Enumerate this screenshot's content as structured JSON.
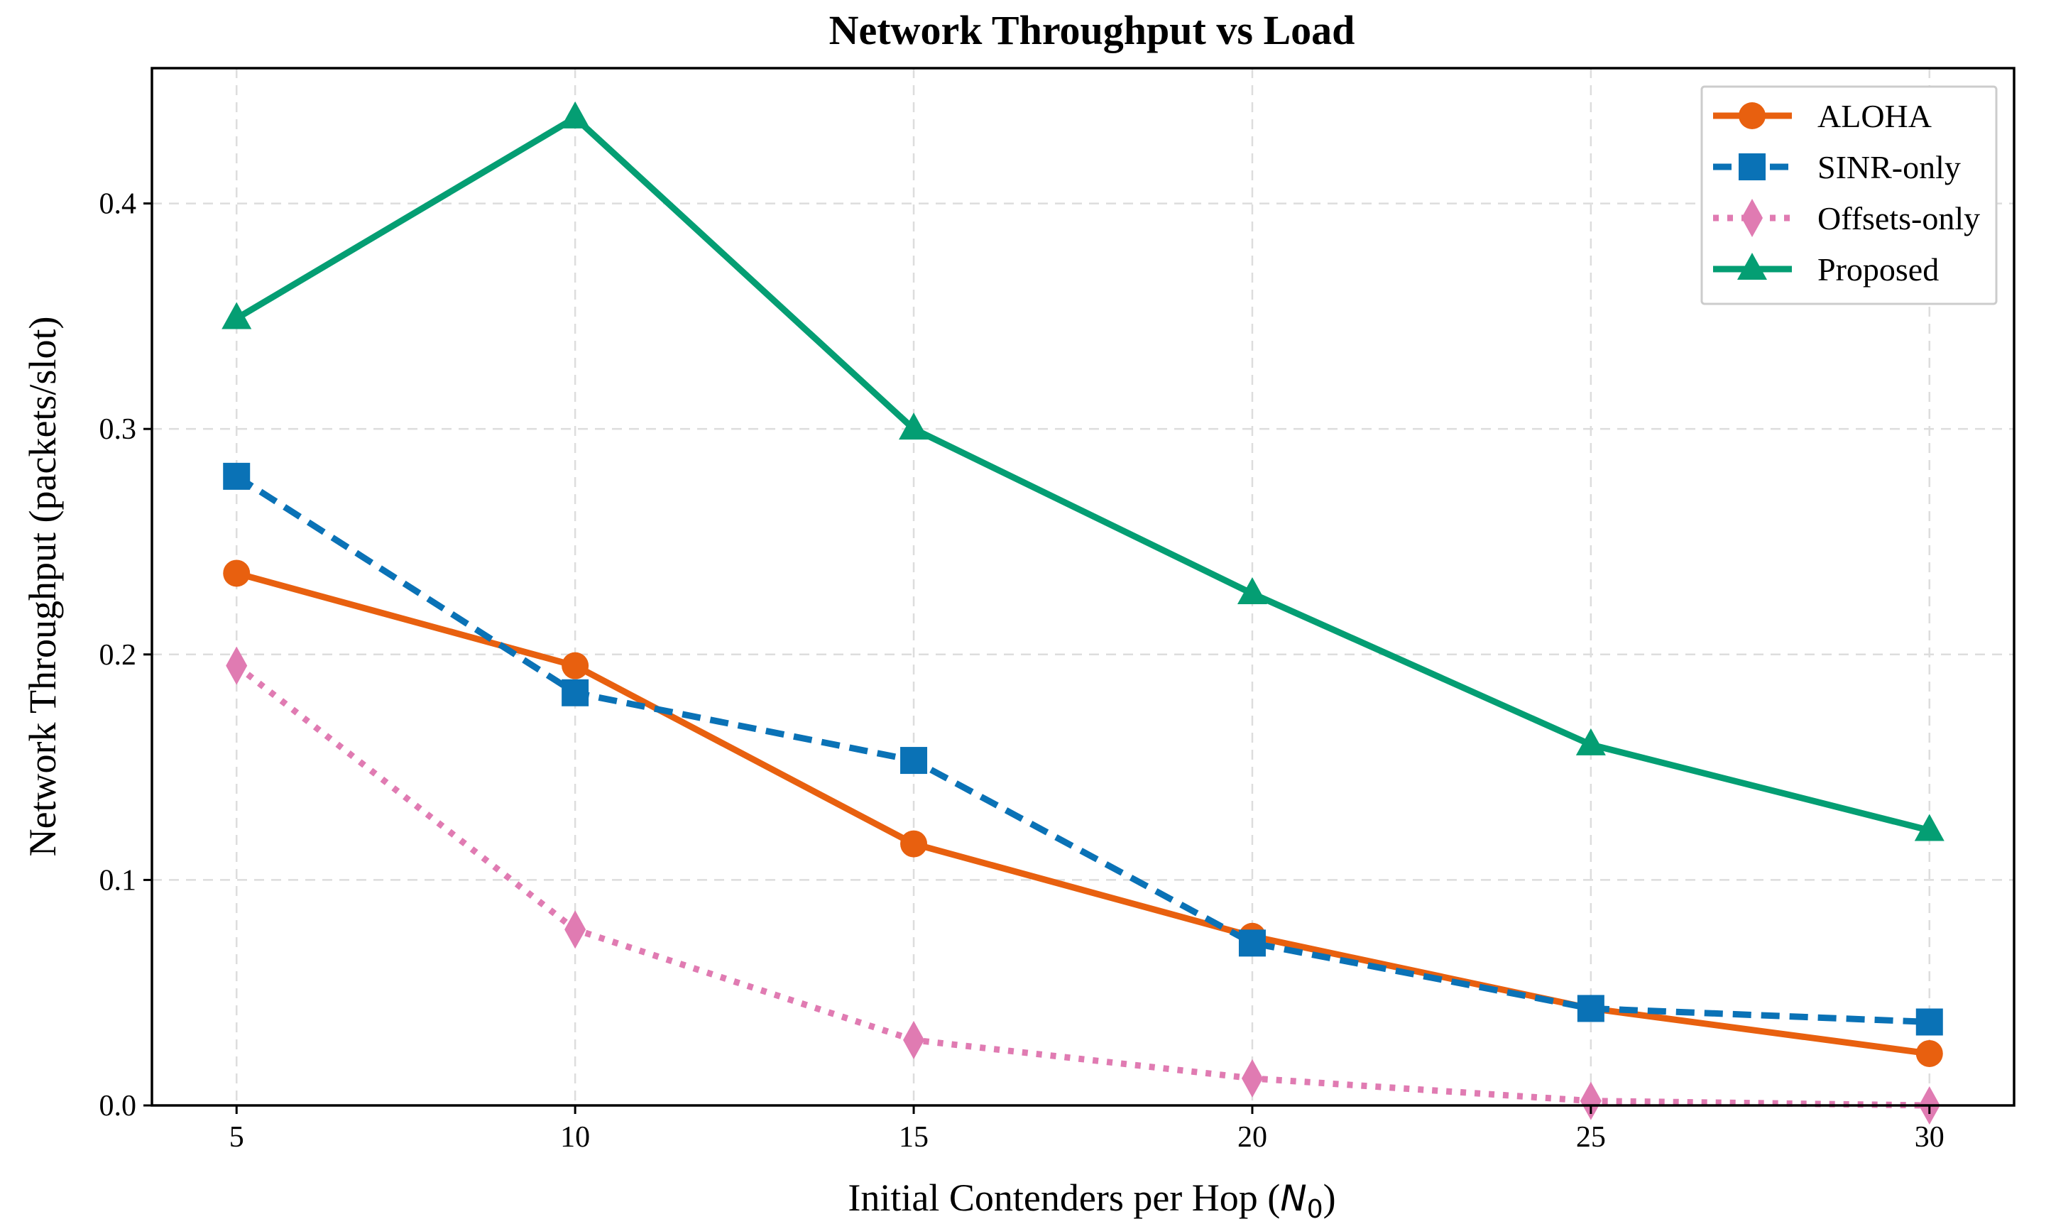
{
  "chart_data": {
    "type": "line",
    "title": "Network Throughput vs Load",
    "xlabel": "Initial Contenders per Hop (",
    "xlabel_math": "N",
    "xlabel_sub": "0",
    "xlabel_close": ")",
    "ylabel": "Network Throughput (packets/slot)",
    "x": [
      5,
      10,
      15,
      20,
      25,
      30
    ],
    "xlim": [
      3.75,
      31.25
    ],
    "ylim": [
      0.0,
      0.46
    ],
    "xticks": [
      5,
      10,
      15,
      20,
      25,
      30
    ],
    "yticks": [
      0.0,
      0.1,
      0.2,
      0.3,
      0.4
    ],
    "ytick_labels": [
      "0.0",
      "0.1",
      "0.2",
      "0.3",
      "0.4"
    ],
    "grid": true,
    "legend_position": "top-right",
    "series": [
      {
        "name": "ALOHA",
        "color": "#e8600f",
        "line_style": "solid",
        "marker": "circle",
        "values": [
          0.236,
          0.195,
          0.116,
          0.075,
          0.043,
          0.023
        ]
      },
      {
        "name": "SINR-only",
        "color": "#0a72b6",
        "line_style": "dashed",
        "marker": "square",
        "values": [
          0.279,
          0.183,
          0.153,
          0.072,
          0.043,
          0.037
        ]
      },
      {
        "name": "Offsets-only",
        "color": "#e07bb2",
        "line_style": "dotted",
        "marker": "diamond",
        "values": [
          0.195,
          0.078,
          0.029,
          0.012,
          0.002,
          0.0
        ]
      },
      {
        "name": "Proposed",
        "color": "#049e73",
        "line_style": "solid",
        "marker": "triangle",
        "values": [
          0.349,
          0.438,
          0.3,
          0.227,
          0.16,
          0.122
        ]
      }
    ]
  }
}
